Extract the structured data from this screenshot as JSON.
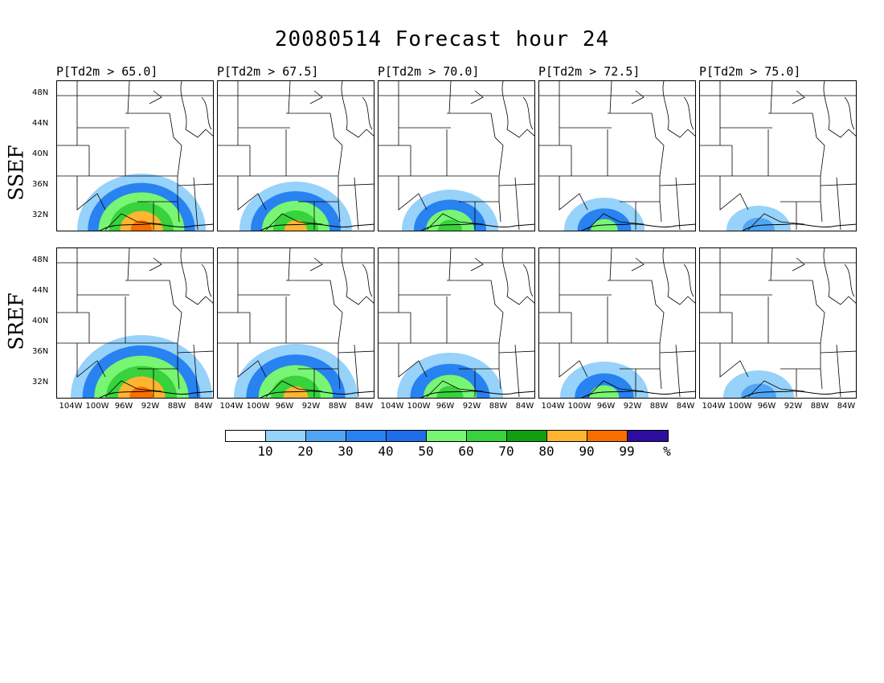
{
  "figure": {
    "title": "20080514 Forecast hour 24",
    "rows": [
      {
        "label": "SSEF"
      },
      {
        "label": "SREF"
      }
    ],
    "columns": [
      {
        "title": "P[Td2m > 65.0]"
      },
      {
        "title": "P[Td2m > 67.5]"
      },
      {
        "title": "P[Td2m > 70.0]"
      },
      {
        "title": "P[Td2m > 72.5]"
      },
      {
        "title": "P[Td2m > 75.0]"
      }
    ],
    "lat_labels": [
      "48N",
      "44N",
      "40N",
      "36N",
      "32N"
    ],
    "lon_labels": [
      "104W",
      "100W",
      "96W",
      "92W",
      "88W",
      "84W"
    ],
    "colorbar": {
      "labels": [
        "10",
        "20",
        "30",
        "40",
        "50",
        "60",
        "70",
        "80",
        "90",
        "99",
        "%"
      ],
      "colors": [
        "#ffffff",
        "#96d2fa",
        "#50a5f5",
        "#2882f0",
        "#1e6eeb",
        "#78f573",
        "#37d23c",
        "#0fa00f",
        "#ffb432",
        "#fa6e00",
        "#2e0ea0"
      ]
    }
  }
}
